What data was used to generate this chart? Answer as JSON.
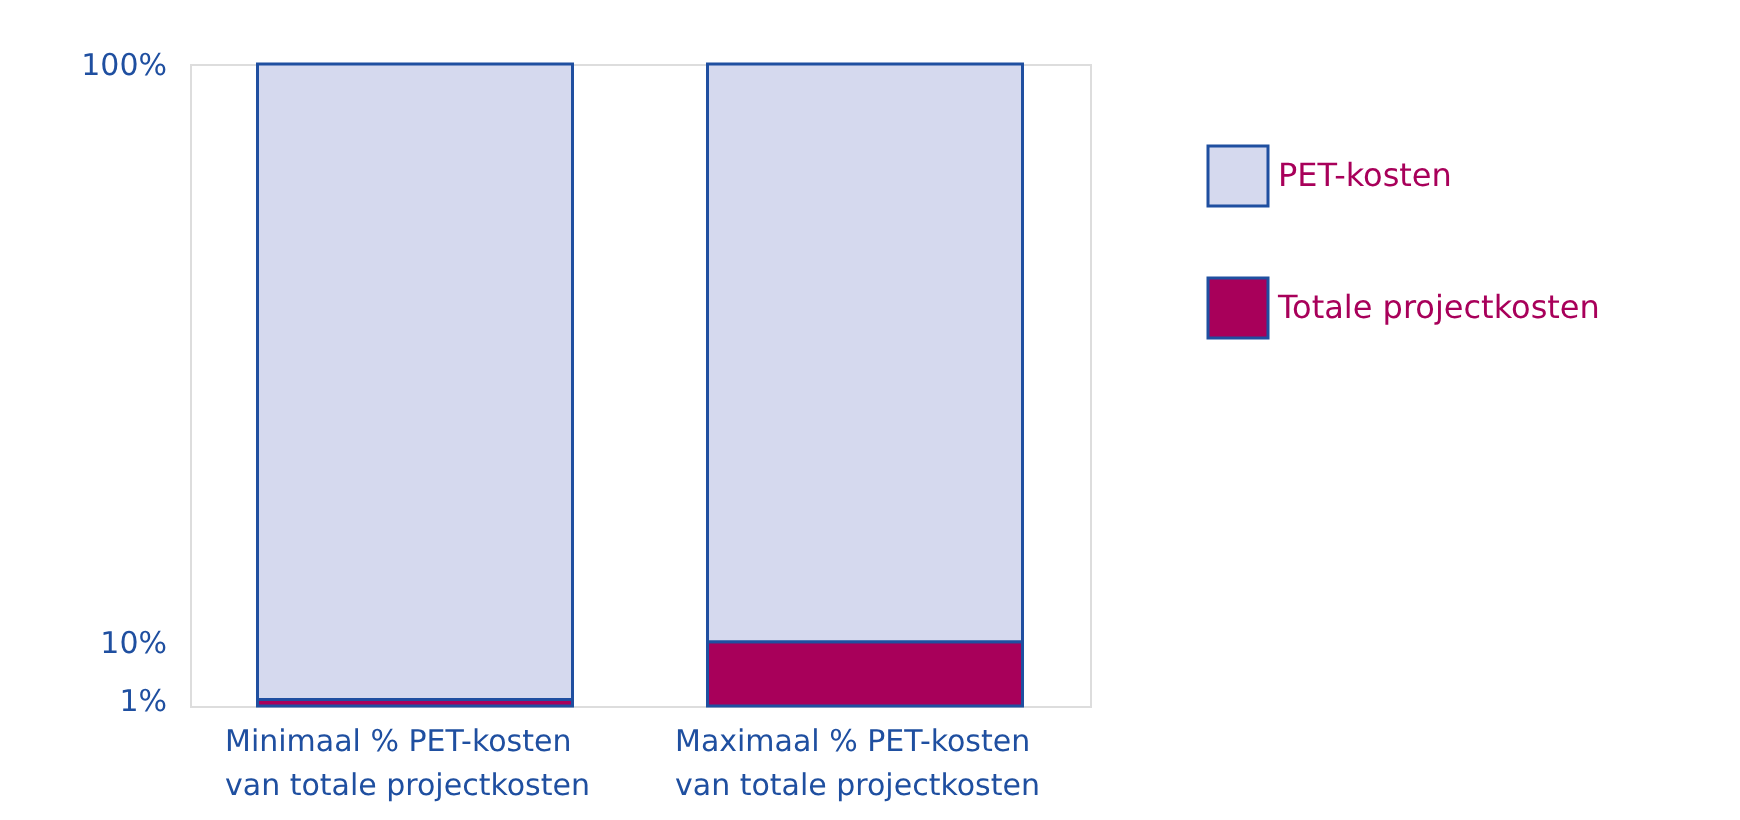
{
  "chart_data": {
    "type": "bar",
    "stacked": true,
    "categories": [
      "Minimaal % PET-kosten\nvan totale projectkosten",
      "Maximaal % PET-kosten\nvan totale projectkosten"
    ],
    "series": [
      {
        "name": "Totale projectkosten",
        "color": "#a8005a",
        "values": [
          1,
          10
        ]
      },
      {
        "name": "PET-kosten",
        "color": "#d5d9ee",
        "values": [
          99,
          90
        ]
      }
    ],
    "ylim": [
      0,
      100
    ],
    "yticks": [
      {
        "value": 1,
        "label": "1%"
      },
      {
        "value": 10,
        "label": "10%"
      },
      {
        "value": 100,
        "label": "100%"
      }
    ],
    "grid": false,
    "legend": "right"
  }
}
